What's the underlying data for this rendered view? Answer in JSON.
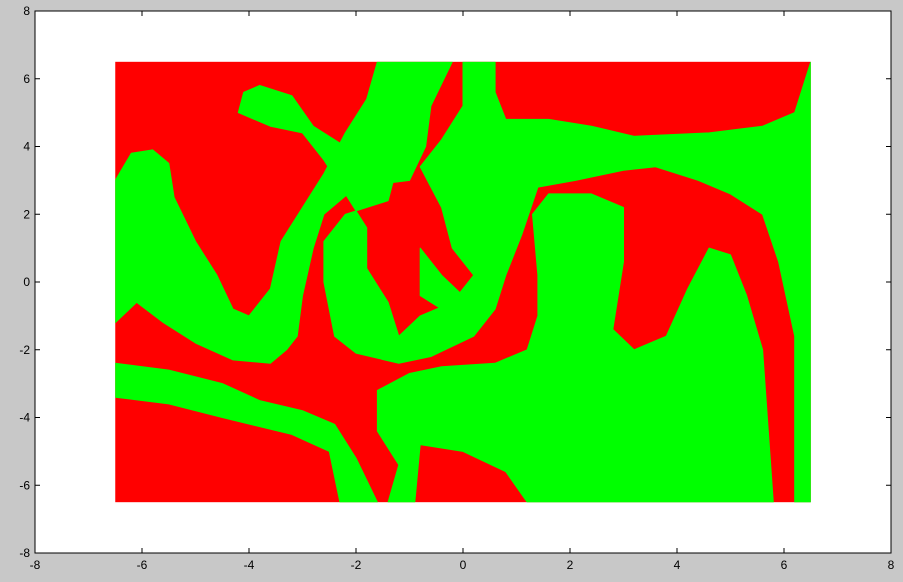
{
  "chart_data": {
    "type": "heatmap",
    "title": "",
    "xlabel": "",
    "ylabel": "",
    "xlim": [
      -8,
      8
    ],
    "ylim": [
      -8,
      8
    ],
    "xticks": [
      -8,
      -6,
      -4,
      -2,
      0,
      2,
      4,
      6,
      8
    ],
    "yticks": [
      -8,
      -6,
      -4,
      -2,
      0,
      2,
      4,
      6,
      8
    ],
    "grid": false,
    "data_extent": {
      "x": [
        -6.5,
        6.5
      ],
      "y": [
        -6.5,
        6.5
      ]
    },
    "colors": {
      "class_a": "#ff0000",
      "class_b": "#00ff00",
      "axes_background": "#ffffff",
      "figure_background": "#c8c8c8"
    },
    "regions": [
      {
        "class": "class_b",
        "polygon": [
          [
            -6.5,
            -2.4
          ],
          [
            -5.5,
            -2.6
          ],
          [
            -4.5,
            -3.0
          ],
          [
            -3.8,
            -3.5
          ],
          [
            -3.0,
            -3.8
          ],
          [
            -2.4,
            -4.2
          ],
          [
            -2.0,
            -5.2
          ],
          [
            -1.6,
            -6.5
          ],
          [
            -2.3,
            -6.5
          ],
          [
            -2.5,
            -5.0
          ],
          [
            -3.2,
            -4.5
          ],
          [
            -4.5,
            -4.0
          ],
          [
            -5.5,
            -3.6
          ],
          [
            -6.5,
            -3.4
          ]
        ]
      },
      {
        "class": "class_b",
        "polygon": [
          [
            -6.5,
            3.0
          ],
          [
            -6.2,
            3.8
          ],
          [
            -5.8,
            3.9
          ],
          [
            -5.5,
            3.5
          ],
          [
            -5.4,
            2.5
          ],
          [
            -5.0,
            1.2
          ],
          [
            -4.6,
            0.2
          ],
          [
            -4.3,
            -0.8
          ],
          [
            -4.0,
            -1.0
          ],
          [
            -3.6,
            -0.2
          ],
          [
            -3.4,
            1.2
          ],
          [
            -3.0,
            2.2
          ],
          [
            -2.6,
            3.2
          ],
          [
            -2.2,
            4.4
          ],
          [
            -1.8,
            5.4
          ],
          [
            -1.6,
            6.5
          ],
          [
            -0.2,
            6.5
          ],
          [
            -0.6,
            5.2
          ],
          [
            -0.7,
            4.0
          ],
          [
            -1.0,
            3.0
          ],
          [
            -2.0,
            2.8
          ],
          [
            -2.6,
            2.0
          ],
          [
            -2.8,
            1.0
          ],
          [
            -3.0,
            -0.4
          ],
          [
            -3.1,
            -1.6
          ],
          [
            -3.3,
            -2.0
          ],
          [
            -3.6,
            -2.4
          ],
          [
            -4.3,
            -2.3
          ],
          [
            -5.0,
            -1.8
          ],
          [
            -5.6,
            -1.2
          ],
          [
            -6.1,
            -0.6
          ],
          [
            -6.5,
            -1.2
          ]
        ]
      },
      {
        "class": "class_b",
        "polygon": [
          [
            -4.1,
            5.6
          ],
          [
            -3.8,
            5.8
          ],
          [
            -3.2,
            5.5
          ],
          [
            -2.8,
            4.6
          ],
          [
            -2.2,
            4.0
          ],
          [
            -1.6,
            4.6
          ],
          [
            -1.2,
            3.6
          ],
          [
            -1.4,
            2.4
          ],
          [
            -2.2,
            2.0
          ],
          [
            -2.6,
            1.2
          ],
          [
            -2.6,
            0.0
          ],
          [
            -2.4,
            -1.6
          ],
          [
            -2.0,
            -2.1
          ],
          [
            -1.2,
            -2.4
          ],
          [
            -0.6,
            -2.2
          ],
          [
            0.2,
            -1.6
          ],
          [
            0.6,
            -0.8
          ],
          [
            0.8,
            0.2
          ],
          [
            1.1,
            1.4
          ],
          [
            1.4,
            2.8
          ],
          [
            2.1,
            3.0
          ],
          [
            3.0,
            3.3
          ],
          [
            3.6,
            3.4
          ],
          [
            4.4,
            3.0
          ],
          [
            5.0,
            2.6
          ],
          [
            5.6,
            2.0
          ],
          [
            5.9,
            0.6
          ],
          [
            6.2,
            -1.6
          ],
          [
            6.2,
            -6.5
          ],
          [
            6.5,
            -6.5
          ],
          [
            6.5,
            6.5
          ],
          [
            6.2,
            5.0
          ],
          [
            5.6,
            4.6
          ],
          [
            4.6,
            4.4
          ],
          [
            3.2,
            4.3
          ],
          [
            2.4,
            4.6
          ],
          [
            1.6,
            4.8
          ],
          [
            0.8,
            4.8
          ],
          [
            0.6,
            5.6
          ],
          [
            0.6,
            6.5
          ],
          [
            0.0,
            6.5
          ],
          [
            0.0,
            5.2
          ],
          [
            -0.4,
            4.2
          ],
          [
            -0.8,
            3.4
          ],
          [
            -0.4,
            2.2
          ],
          [
            -0.2,
            1.0
          ],
          [
            0.2,
            0.2
          ],
          [
            -0.2,
            -0.6
          ],
          [
            -0.8,
            -1.0
          ],
          [
            -1.2,
            -1.6
          ],
          [
            -1.4,
            -0.6
          ],
          [
            -1.8,
            0.4
          ],
          [
            -1.8,
            1.6
          ],
          [
            -2.2,
            2.6
          ],
          [
            -2.6,
            3.6
          ],
          [
            -3.0,
            4.4
          ],
          [
            -3.6,
            4.6
          ],
          [
            -4.2,
            5.0
          ]
        ]
      },
      {
        "class": "class_b",
        "polygon": [
          [
            -1.4,
            -6.5
          ],
          [
            -1.2,
            -5.4
          ],
          [
            -1.6,
            -4.4
          ],
          [
            -1.6,
            -3.2
          ],
          [
            -1.0,
            -2.7
          ],
          [
            -0.4,
            -2.5
          ],
          [
            0.6,
            -2.4
          ],
          [
            1.2,
            -2.0
          ],
          [
            1.4,
            -1.0
          ],
          [
            1.4,
            0.2
          ],
          [
            1.3,
            2.0
          ],
          [
            1.6,
            2.6
          ],
          [
            2.4,
            2.6
          ],
          [
            3.0,
            2.2
          ],
          [
            3.0,
            0.6
          ],
          [
            2.8,
            -1.4
          ],
          [
            3.2,
            -2.0
          ],
          [
            3.8,
            -1.6
          ],
          [
            4.2,
            -0.2
          ],
          [
            4.6,
            1.0
          ],
          [
            5.0,
            0.8
          ],
          [
            5.3,
            -0.4
          ],
          [
            5.6,
            -2.0
          ],
          [
            5.8,
            -6.5
          ],
          [
            1.2,
            -6.5
          ],
          [
            0.8,
            -5.6
          ],
          [
            0.0,
            -5.0
          ],
          [
            -0.8,
            -4.8
          ],
          [
            -0.9,
            -6.5
          ]
        ]
      },
      {
        "class": "class_b",
        "polygon": [
          [
            -0.8,
            1.0
          ],
          [
            -0.4,
            0.2
          ],
          [
            0.0,
            -0.4
          ],
          [
            -0.4,
            -0.8
          ],
          [
            -0.8,
            -0.4
          ]
        ]
      }
    ]
  }
}
